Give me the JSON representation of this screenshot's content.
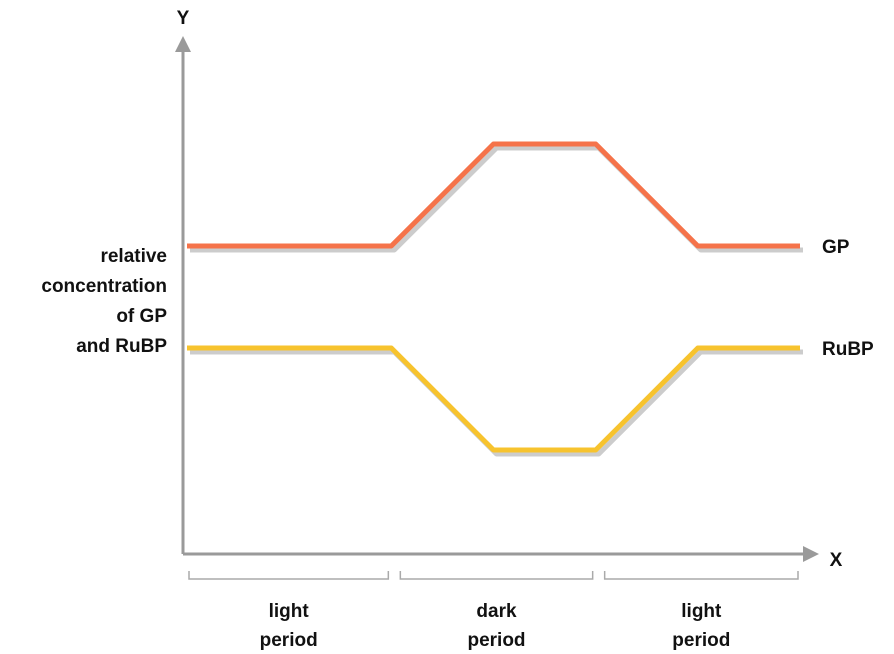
{
  "chart_data": {
    "type": "line",
    "title": "",
    "xlabel": "X",
    "ylabel": "Y",
    "y_axis_title": "relative concentration of GP and RuBP",
    "y_axis_title_lines": [
      "relative",
      "concentration",
      "of GP",
      "and RuBP"
    ],
    "x_unit_range": [
      0,
      6
    ],
    "ylim": [
      0,
      10
    ],
    "periods": [
      {
        "label_lines": [
          "light",
          "period"
        ],
        "start": 0,
        "end": 2
      },
      {
        "label_lines": [
          "dark",
          "period"
        ],
        "start": 2,
        "end": 4
      },
      {
        "label_lines": [
          "light",
          "period"
        ],
        "start": 4,
        "end": 6
      }
    ],
    "series": [
      {
        "name": "GP",
        "color": "#f5734a",
        "shadow": "#cccccc",
        "points": [
          [
            0,
            6
          ],
          [
            2,
            6
          ],
          [
            3,
            8
          ],
          [
            4,
            8
          ],
          [
            5,
            6
          ],
          [
            6,
            6
          ]
        ]
      },
      {
        "name": "RuBP",
        "color": "#f7c32e",
        "shadow": "#cccccc",
        "points": [
          [
            0,
            4
          ],
          [
            2,
            4
          ],
          [
            3,
            2
          ],
          [
            4,
            2
          ],
          [
            5,
            4
          ],
          [
            6,
            4
          ]
        ]
      }
    ],
    "grid": false,
    "axis_color": "#9a9a9a"
  }
}
